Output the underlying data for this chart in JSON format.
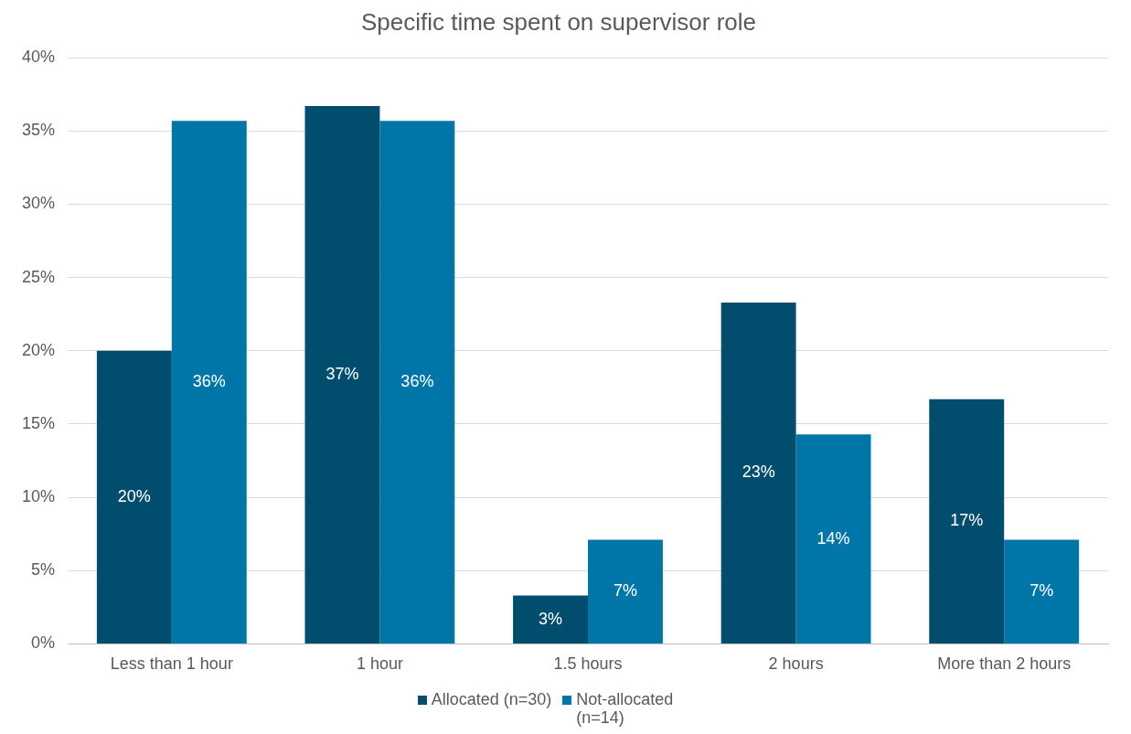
{
  "chart_data": {
    "type": "bar",
    "title": "Specific time spent on supervisor role",
    "categories": [
      "Less than 1 hour",
      "1 hour",
      "1.5 hours",
      "2 hours",
      "More than 2 hours"
    ],
    "series": [
      {
        "name": "Allocated (n=30)",
        "color": "#004d6e",
        "values": [
          20,
          36.7,
          3.3,
          23.3,
          16.7
        ],
        "value_labels": [
          "20%",
          "37%",
          "3%",
          "23%",
          "17%"
        ]
      },
      {
        "name": "Not-allocated (n=14)",
        "color": "#0076a8",
        "values": [
          35.7,
          35.7,
          7.1,
          14.3,
          7.1
        ],
        "value_labels": [
          "36%",
          "36%",
          "7%",
          "14%",
          "7%"
        ]
      }
    ],
    "ylim": [
      0,
      40
    ],
    "yticks": [
      {
        "value": 0,
        "label": "0%"
      },
      {
        "value": 5,
        "label": "5%"
      },
      {
        "value": 10,
        "label": "10%"
      },
      {
        "value": 15,
        "label": "15%"
      },
      {
        "value": 20,
        "label": "20%"
      },
      {
        "value": 25,
        "label": "25%"
      },
      {
        "value": 30,
        "label": "30%"
      },
      {
        "value": 35,
        "label": "35%"
      },
      {
        "value": 40,
        "label": "40%"
      }
    ],
    "grid": "y",
    "legend": "bottom"
  }
}
